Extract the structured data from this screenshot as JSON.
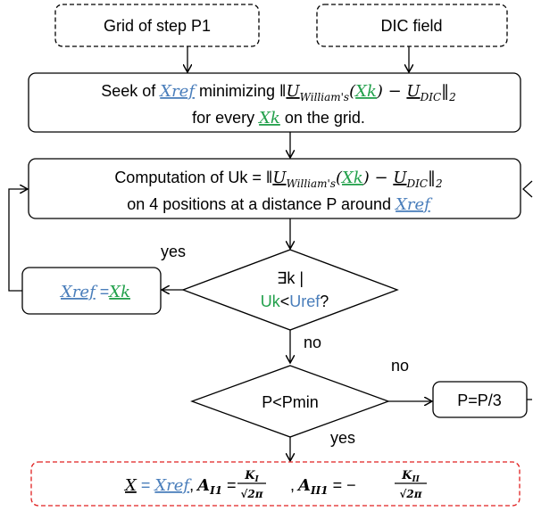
{
  "nodes": [
    {
      "label": "Grid of step P1"
    },
    {
      "label": "DIC field"
    },
    {
      "line1": [
        "Seek of ",
        "Xref",
        " minimizing ‖",
        "U",
        "William's",
        "(",
        "Xk",
        ") − ",
        "U",
        "DIC",
        "‖",
        "2"
      ],
      "line2": [
        "for every ",
        "Xk",
        " on the grid."
      ]
    },
    {
      "line1": [
        "Computation of Uk = ‖",
        "U",
        "William's",
        "(",
        "Xk",
        ") − ",
        "U",
        "DIC",
        "‖",
        "2"
      ],
      "line2": [
        "on 4 positions at a distance P around ",
        "Xref"
      ]
    },
    {
      "parts": [
        "Xref",
        " =",
        "Xk"
      ]
    },
    {
      "line1": "∃k |",
      "line2": [
        "Uk",
        "<",
        "Uref",
        "?"
      ]
    },
    {
      "label": "P<Pmin"
    },
    {
      "label": "P=P/3"
    },
    {
      "parts": [
        "X",
        " = ",
        "Xref",
        ",",
        "A",
        "I1",
        "=",
        "K",
        "I",
        "√2π",
        ",",
        "A",
        "II1",
        "= −",
        "K",
        "II",
        "√2π"
      ]
    }
  ],
  "edge_labels": [
    "yes",
    "no",
    "no",
    "yes"
  ]
}
